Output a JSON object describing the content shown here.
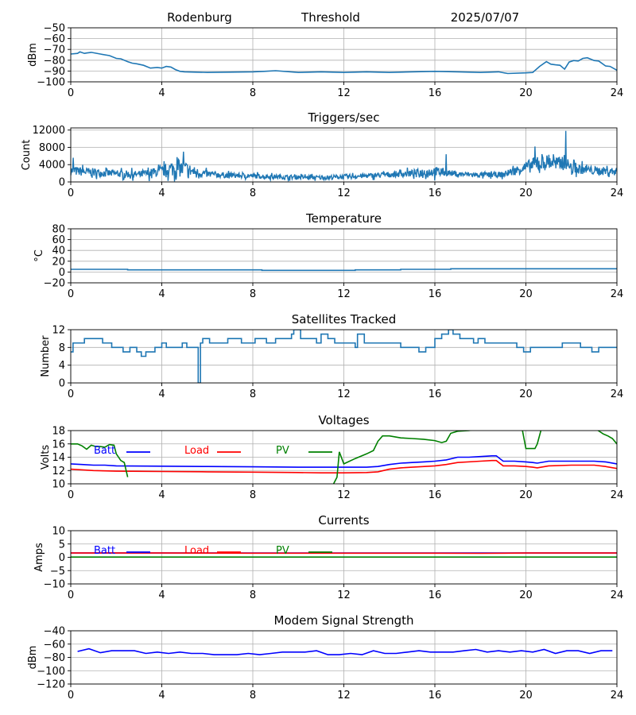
{
  "header": {
    "site": "Rodenburg",
    "mode": "Threshold",
    "date": "2025/07/07"
  },
  "chart_data": [
    {
      "id": "signal",
      "type": "line",
      "title": "",
      "xlabel": "",
      "ylabel": "dBm",
      "xlim": [
        0,
        24
      ],
      "xticks": [
        0,
        4,
        8,
        12,
        16,
        20,
        24
      ],
      "ylim": [
        -100,
        -50
      ],
      "yticks": [
        -100,
        -90,
        -80,
        -70,
        -60,
        -50
      ],
      "grid": true,
      "style": "steppy",
      "series": [
        {
          "color": "#1f77b4",
          "x": [
            0,
            0.3,
            0.4,
            0.6,
            0.7,
            0.9,
            1.3,
            1.7,
            2.0,
            2.2,
            2.5,
            2.7,
            2.9,
            3.2,
            3.5,
            3.8,
            4.0,
            4.2,
            4.4,
            4.6,
            4.8,
            5.0,
            6.0,
            8.0,
            8.5,
            9.0,
            10,
            11,
            12,
            13,
            14,
            15,
            16,
            17,
            18,
            18.8,
            19.2,
            20.0,
            20.3,
            20.6,
            20.9,
            21.1,
            21.3,
            21.5,
            21.7,
            21.9,
            22.1,
            22.3,
            22.5,
            22.7,
            23.0,
            23.2,
            23.5,
            23.7,
            24
          ],
          "y": [
            -74,
            -74,
            -72,
            -74,
            -73,
            -73,
            -74,
            -76,
            -78,
            -79,
            -81,
            -83,
            -83,
            -85,
            -87,
            -87,
            -87,
            -86,
            -86,
            -89,
            -90,
            -91,
            -91,
            -91,
            -90,
            -90,
            -91,
            -91,
            -91,
            -91,
            -91,
            -91,
            -90,
            -91,
            -91,
            -91,
            -92,
            -92,
            -91,
            -86,
            -81,
            -84,
            -84,
            -85,
            -88,
            -82,
            -80,
            -81,
            -78,
            -78,
            -80,
            -81,
            -85,
            -86,
            -89
          ]
        }
      ]
    },
    {
      "id": "triggers",
      "type": "line",
      "title": "Triggers/sec",
      "xlabel": "",
      "ylabel": "Count",
      "xlim": [
        0,
        24
      ],
      "xticks": [
        0,
        4,
        8,
        12,
        16,
        20,
        24
      ],
      "ylim": [
        0,
        12500
      ],
      "yticks": [
        0,
        4000,
        8000,
        12000
      ],
      "grid": true,
      "style": "noisy",
      "series": [
        {
          "color": "#1f77b4",
          "x": [
            0,
            1,
            2,
            3,
            4,
            4.5,
            5,
            5.5,
            6,
            7,
            8,
            9,
            10,
            11,
            12,
            13,
            14,
            15,
            16,
            16.5,
            17,
            18,
            19,
            20,
            20.5,
            21,
            21.5,
            21.7,
            22,
            23,
            24
          ],
          "base": [
            2600,
            2200,
            1900,
            1700,
            2400,
            3200,
            3000,
            2200,
            1800,
            1500,
            1400,
            1200,
            1100,
            1000,
            1200,
            1400,
            1700,
            2000,
            2400,
            2200,
            1800,
            1600,
            1700,
            3400,
            4200,
            4600,
            4200,
            4800,
            3200,
            2600,
            2400
          ],
          "spread": [
            2000,
            1800,
            1500,
            1500,
            2200,
            3500,
            3600,
            2000,
            1400,
            1100,
            1100,
            900,
            900,
            900,
            1000,
            1000,
            1200,
            1500,
            2200,
            1400,
            1100,
            1100,
            1200,
            2500,
            3400,
            3200,
            2500,
            2800,
            2200,
            1800,
            1600
          ],
          "spikes": [
            [
              21.75,
              11800
            ],
            [
              20.4,
              8200
            ],
            [
              4.95,
              7000
            ],
            [
              0.1,
              5600
            ],
            [
              16.5,
              6400
            ],
            [
              21.2,
              6400
            ]
          ]
        }
      ]
    },
    {
      "id": "temperature",
      "type": "line",
      "title": "Temperature",
      "xlabel": "",
      "ylabel": "°C",
      "xlim": [
        0,
        24
      ],
      "xticks": [
        0,
        4,
        8,
        12,
        16,
        20,
        24
      ],
      "ylim": [
        -20,
        80
      ],
      "yticks": [
        -20,
        0,
        20,
        40,
        60,
        80
      ],
      "grid": true,
      "style": "step",
      "series": [
        {
          "color": "#1f77b4",
          "x": [
            0,
            2.5,
            2.5,
            8.4,
            8.4,
            12.5,
            12.5,
            14.5,
            14.5,
            16.7,
            16.7,
            24
          ],
          "y": [
            5,
            5,
            4,
            4,
            3,
            3,
            4,
            4,
            5,
            5,
            6,
            6
          ]
        }
      ]
    },
    {
      "id": "satellites",
      "type": "line",
      "title": "Satellites Tracked",
      "xlabel": "",
      "ylabel": "Number",
      "xlim": [
        0,
        24
      ],
      "xticks": [
        0,
        4,
        8,
        12,
        16,
        20,
        24
      ],
      "ylim": [
        0,
        12
      ],
      "yticks": [
        0,
        4,
        8,
        12
      ],
      "grid": true,
      "style": "step",
      "series": [
        {
          "color": "#1f77b4",
          "x": [
            0,
            0.1,
            0.5,
            0.6,
            1.2,
            1.4,
            1.6,
            1.8,
            2.0,
            2.3,
            2.6,
            2.9,
            3.1,
            3.3,
            3.7,
            4.0,
            4.2,
            4.6,
            4.9,
            5.1,
            5.5,
            5.6,
            5.7,
            5.8,
            5.9,
            6.1,
            6.3,
            6.6,
            6.9,
            7.2,
            7.5,
            7.9,
            8.1,
            8.6,
            9.0,
            9.4,
            9.7,
            9.8,
            10.1,
            10.5,
            10.8,
            11.0,
            11.3,
            11.6,
            12.0,
            12.3,
            12.5,
            12.6,
            12.9,
            13.3,
            13.6,
            14.0,
            14.5,
            15.0,
            15.3,
            15.6,
            15.9,
            16.0,
            16.3,
            16.6,
            16.8,
            17.1,
            17.4,
            17.7,
            17.9,
            18.2,
            18.6,
            19.0,
            19.3,
            19.6,
            19.9,
            20.2,
            20.7,
            21.2,
            21.6,
            22.0,
            22.4,
            22.7,
            22.9,
            23.2,
            23.5,
            24
          ],
          "y": [
            7,
            9,
            9,
            10,
            10,
            9,
            9,
            8,
            8,
            7,
            8,
            7,
            6,
            7,
            8,
            9,
            8,
            8,
            9,
            8,
            8,
            0,
            9,
            10,
            10,
            9,
            9,
            9,
            10,
            10,
            9,
            9,
            10,
            9,
            10,
            10,
            11,
            12,
            10,
            10,
            9,
            11,
            10,
            9,
            9,
            9,
            8,
            11,
            9,
            9,
            9,
            9,
            8,
            8,
            7,
            8,
            8,
            10,
            11,
            12,
            11,
            10,
            10,
            9,
            10,
            9,
            9,
            9,
            9,
            8,
            7,
            8,
            8,
            8,
            9,
            9,
            8,
            8,
            7,
            8,
            8,
            8
          ]
        }
      ]
    },
    {
      "id": "voltages",
      "type": "line",
      "title": "Voltages",
      "xlabel": "",
      "ylabel": "Volts",
      "xlim": [
        0,
        24
      ],
      "xticks": [
        0,
        4,
        8,
        12,
        16,
        20,
        24
      ],
      "ylim": [
        10,
        18
      ],
      "yticks": [
        10,
        12,
        14,
        16,
        18
      ],
      "grid": true,
      "legend_position": "top-left",
      "series": [
        {
          "name": "Batt",
          "color": "#0000ff",
          "x": [
            0,
            0.5,
            1,
            1.5,
            2,
            4,
            6,
            8,
            10,
            12,
            13,
            13.5,
            14,
            14.5,
            15,
            15.5,
            16,
            16.5,
            17,
            17.5,
            18,
            18.5,
            18.7,
            19,
            19.5,
            20,
            20.3,
            20.5,
            21,
            21.5,
            22,
            23,
            23.5,
            24
          ],
          "y": [
            13.0,
            12.9,
            12.8,
            12.8,
            12.7,
            12.65,
            12.6,
            12.55,
            12.5,
            12.5,
            12.5,
            12.6,
            12.9,
            13.1,
            13.2,
            13.3,
            13.4,
            13.6,
            14.0,
            14.0,
            14.1,
            14.2,
            14.2,
            13.4,
            13.4,
            13.3,
            13.2,
            13.1,
            13.4,
            13.4,
            13.4,
            13.4,
            13.3,
            13.0
          ]
        },
        {
          "name": "Load",
          "color": "#ff0000",
          "x": [
            0,
            0.5,
            1,
            2,
            4,
            6,
            8,
            10,
            11,
            12,
            13,
            13.5,
            14,
            14.5,
            15,
            16,
            16.5,
            17,
            18,
            18.5,
            18.7,
            19,
            19.5,
            20,
            20.3,
            20.5,
            21,
            22,
            23,
            23.5,
            24
          ],
          "y": [
            12.2,
            12.1,
            12.0,
            11.9,
            11.85,
            11.8,
            11.75,
            11.7,
            11.65,
            11.65,
            11.7,
            11.8,
            12.2,
            12.4,
            12.5,
            12.7,
            12.9,
            13.2,
            13.4,
            13.5,
            13.5,
            12.7,
            12.7,
            12.6,
            12.5,
            12.4,
            12.7,
            12.8,
            12.8,
            12.6,
            12.3
          ]
        },
        {
          "name": "PV",
          "color": "#008000",
          "segments": [
            {
              "x": [
                0,
                0.3,
                0.5,
                0.7,
                0.9,
                1.1,
                1.3,
                1.5,
                1.7,
                1.9,
                2.0,
                2.2,
                2.35,
                2.5
              ],
              "y": [
                16.0,
                16.0,
                15.7,
                15.2,
                15.8,
                15.6,
                15.6,
                15.5,
                15.9,
                15.8,
                14.5,
                13.5,
                13.2,
                11.0
              ]
            },
            {
              "x": [
                11.55,
                11.7,
                11.8,
                12.0,
                12.5,
                13.0,
                13.3,
                13.5,
                13.7,
                14.0,
                14.5,
                15.0,
                15.5,
                16.0,
                16.3,
                16.5,
                16.7,
                17.0,
                17.5,
                18.0,
                18.5,
                19.0,
                19.5,
                19.8,
                19.85
              ],
              "y": [
                10,
                11.0,
                14.8,
                13.0,
                13.8,
                14.5,
                15.0,
                16.4,
                17.2,
                17.2,
                16.9,
                16.8,
                16.7,
                16.5,
                16.2,
                16.4,
                17.6,
                17.9,
                18.0,
                18.3,
                18.4,
                18.5,
                18.4,
                18.3,
                18.0
              ]
            },
            {
              "x": [
                19.85,
                20.0,
                20.2,
                20.4,
                20.5,
                20.7,
                21.0,
                22.0,
                23.0,
                23.4,
                23.6,
                23.8,
                24
              ],
              "y": [
                18.0,
                15.3,
                15.3,
                15.3,
                16.0,
                18.5,
                18.6,
                18.6,
                18.4,
                17.5,
                17.2,
                16.8,
                16.0
              ]
            }
          ]
        }
      ]
    },
    {
      "id": "currents",
      "type": "line",
      "title": "Currents",
      "xlabel": "",
      "ylabel": "Amps",
      "xlim": [
        0,
        24
      ],
      "xticks": [
        0,
        4,
        8,
        12,
        16,
        20,
        24
      ],
      "ylim": [
        -10,
        10
      ],
      "yticks": [
        -10,
        -5,
        0,
        5,
        10
      ],
      "grid": true,
      "legend_position": "top-left",
      "series": [
        {
          "name": "Batt",
          "color": "#0000ff",
          "x": [
            0,
            24
          ],
          "y": [
            1.6,
            1.6
          ]
        },
        {
          "name": "Load",
          "color": "#ff0000",
          "x": [
            0,
            4,
            8,
            12,
            16,
            18,
            20,
            22,
            24
          ],
          "y": [
            1.6,
            1.6,
            1.55,
            1.55,
            1.55,
            1.5,
            1.6,
            1.6,
            1.6
          ]
        },
        {
          "name": "PV",
          "color": "#008000",
          "x": [
            0,
            24
          ],
          "y": [
            0.1,
            0.1
          ]
        }
      ]
    },
    {
      "id": "modem",
      "type": "line",
      "title": "Modem Signal Strength",
      "xlabel": "",
      "ylabel": "dBm",
      "xlim": [
        0,
        24
      ],
      "xticks": [
        0,
        4,
        8,
        12,
        16,
        20,
        24
      ],
      "ylim": [
        -120,
        -40
      ],
      "yticks": [
        -120,
        -100,
        -80,
        -60,
        -40
      ],
      "grid": true,
      "series": [
        {
          "color": "#0000ff",
          "x": [
            0.3,
            0.8,
            1.3,
            1.8,
            2.3,
            2.8,
            3.3,
            3.8,
            4.3,
            4.8,
            5.3,
            5.8,
            6.3,
            6.8,
            7.3,
            7.8,
            8.3,
            8.8,
            9.3,
            9.8,
            10.3,
            10.8,
            11.3,
            11.8,
            12.3,
            12.8,
            13.3,
            13.8,
            14.3,
            14.8,
            15.3,
            15.8,
            16.3,
            16.8,
            17.3,
            17.8,
            18.3,
            18.8,
            19.3,
            19.8,
            20.3,
            20.8,
            21.3,
            21.8,
            22.3,
            22.8,
            23.3,
            23.8
          ],
          "y": [
            -71,
            -67,
            -73,
            -70,
            -70,
            -70,
            -74,
            -72,
            -74,
            -72,
            -74,
            -74,
            -76,
            -76,
            -76,
            -74,
            -76,
            -74,
            -72,
            -72,
            -72,
            -70,
            -76,
            -76,
            -74,
            -76,
            -70,
            -74,
            -74,
            -72,
            -70,
            -72,
            -72,
            -72,
            -70,
            -68,
            -72,
            -70,
            -72,
            -70,
            -72,
            -68,
            -74,
            -70,
            -70,
            -74,
            -70,
            -70
          ]
        }
      ]
    }
  ]
}
